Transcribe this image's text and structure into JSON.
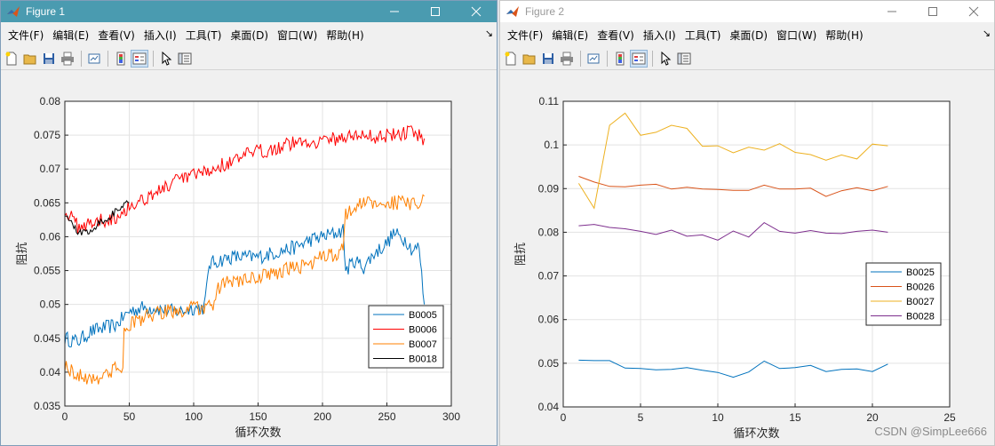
{
  "window1": {
    "title": "Figure 1",
    "menu": [
      "文件(F)",
      "编辑(E)",
      "查看(V)",
      "插入(I)",
      "工具(T)",
      "桌面(D)",
      "窗口(W)",
      "帮助(H)"
    ],
    "menu_arrow": "↘"
  },
  "window2": {
    "title": "Figure 2",
    "menu": [
      "文件(F)",
      "编辑(E)",
      "查看(V)",
      "插入(I)",
      "工具(T)",
      "桌面(D)",
      "窗口(W)",
      "帮助(H)"
    ],
    "menu_arrow": "↘"
  },
  "toolbar_icons": [
    "new-file-icon",
    "open-folder-icon",
    "save-icon",
    "print-icon",
    "link-plot-icon",
    "colorbar-icon",
    "legend-icon",
    "pointer-icon",
    "property-editor-icon"
  ],
  "watermark": "CSDN @SimpLee666",
  "chart_data": [
    {
      "type": "line",
      "xlabel": "循环次数",
      "ylabel": "阻抗",
      "xlim": [
        0,
        300
      ],
      "ylim": [
        0.035,
        0.08
      ],
      "xticks": [
        0,
        50,
        100,
        150,
        200,
        250,
        300
      ],
      "yticks": [
        0.035,
        0.04,
        0.045,
        0.05,
        0.055,
        0.06,
        0.065,
        0.07,
        0.075,
        0.08
      ],
      "grid": true,
      "legend": "lower-right",
      "noise": true,
      "series": [
        {
          "name": "B0005",
          "color": "#0072bd",
          "points": [
            [
              0,
              0.045
            ],
            [
              10,
              0.0445
            ],
            [
              20,
              0.046
            ],
            [
              30,
              0.0465
            ],
            [
              40,
              0.047
            ],
            [
              50,
              0.049
            ],
            [
              60,
              0.0495
            ],
            [
              70,
              0.0495
            ],
            [
              80,
              0.049
            ],
            [
              90,
              0.049
            ],
            [
              100,
              0.0495
            ],
            [
              108,
              0.0495
            ],
            [
              110,
              0.052
            ],
            [
              112,
              0.056
            ],
            [
              120,
              0.0565
            ],
            [
              130,
              0.057
            ],
            [
              140,
              0.057
            ],
            [
              150,
              0.057
            ],
            [
              160,
              0.0575
            ],
            [
              170,
              0.058
            ],
            [
              180,
              0.0585
            ],
            [
              190,
              0.0595
            ],
            [
              200,
              0.06
            ],
            [
              210,
              0.0605
            ],
            [
              216,
              0.061
            ],
            [
              218,
              0.055
            ],
            [
              225,
              0.0565
            ],
            [
              232,
              0.0555
            ],
            [
              240,
              0.0575
            ],
            [
              250,
              0.059
            ],
            [
              255,
              0.0605
            ],
            [
              260,
              0.06
            ],
            [
              265,
              0.0595
            ],
            [
              270,
              0.058
            ],
            [
              275,
              0.0585
            ],
            [
              279,
              0.05
            ]
          ]
        },
        {
          "name": "B0006",
          "color": "#ff0000",
          "points": [
            [
              0,
              0.064
            ],
            [
              10,
              0.0615
            ],
            [
              20,
              0.062
            ],
            [
              30,
              0.0625
            ],
            [
              40,
              0.063
            ],
            [
              50,
              0.0645
            ],
            [
              60,
              0.0655
            ],
            [
              70,
              0.0665
            ],
            [
              80,
              0.0675
            ],
            [
              90,
              0.0685
            ],
            [
              100,
              0.069
            ],
            [
              110,
              0.0695
            ],
            [
              120,
              0.0705
            ],
            [
              130,
              0.071
            ],
            [
              140,
              0.072
            ],
            [
              150,
              0.0725
            ],
            [
              160,
              0.073
            ],
            [
              170,
              0.0735
            ],
            [
              180,
              0.074
            ],
            [
              190,
              0.074
            ],
            [
              200,
              0.0742
            ],
            [
              210,
              0.0745
            ],
            [
              220,
              0.0748
            ],
            [
              230,
              0.075
            ],
            [
              240,
              0.0748
            ],
            [
              250,
              0.075
            ],
            [
              260,
              0.0752
            ],
            [
              270,
              0.0755
            ],
            [
              279,
              0.0745
            ]
          ]
        },
        {
          "name": "B0007",
          "color": "#ff8000",
          "points": [
            [
              0,
              0.041
            ],
            [
              10,
              0.0395
            ],
            [
              20,
              0.039
            ],
            [
              30,
              0.0395
            ],
            [
              40,
              0.0405
            ],
            [
              45,
              0.041
            ],
            [
              46,
              0.046
            ],
            [
              50,
              0.047
            ],
            [
              60,
              0.048
            ],
            [
              70,
              0.0485
            ],
            [
              80,
              0.049
            ],
            [
              90,
              0.049
            ],
            [
              100,
              0.0495
            ],
            [
              110,
              0.0495
            ],
            [
              115,
              0.0495
            ],
            [
              117,
              0.0515
            ],
            [
              120,
              0.0525
            ],
            [
              130,
              0.0535
            ],
            [
              140,
              0.0535
            ],
            [
              150,
              0.054
            ],
            [
              160,
              0.0545
            ],
            [
              170,
              0.055
            ],
            [
              180,
              0.0555
            ],
            [
              190,
              0.056
            ],
            [
              200,
              0.057
            ],
            [
              210,
              0.0575
            ],
            [
              216,
              0.058
            ],
            [
              218,
              0.0635
            ],
            [
              225,
              0.0645
            ],
            [
              235,
              0.065
            ],
            [
              245,
              0.065
            ],
            [
              255,
              0.065
            ],
            [
              265,
              0.065
            ],
            [
              275,
              0.0645
            ],
            [
              279,
              0.066
            ]
          ]
        },
        {
          "name": "B0018",
          "color": "#000000",
          "points": [
            [
              0,
              0.0635
            ],
            [
              5,
              0.062
            ],
            [
              10,
              0.0605
            ],
            [
              15,
              0.0608
            ],
            [
              20,
              0.061
            ],
            [
              25,
              0.0618
            ],
            [
              30,
              0.0625
            ],
            [
              35,
              0.063
            ],
            [
              40,
              0.0638
            ],
            [
              45,
              0.0645
            ],
            [
              50,
              0.065
            ]
          ]
        }
      ]
    },
    {
      "type": "line",
      "xlabel": "循环次数",
      "ylabel": "阻抗",
      "xlim": [
        0,
        25
      ],
      "ylim": [
        0.04,
        0.11
      ],
      "xticks": [
        0,
        5,
        10,
        15,
        20,
        25
      ],
      "yticks": [
        0.04,
        0.05,
        0.06,
        0.07,
        0.08,
        0.09,
        0.1,
        0.11
      ],
      "grid": true,
      "legend": "right",
      "x": [
        1,
        2,
        3,
        4,
        5,
        6,
        7,
        8,
        9,
        10,
        11,
        12,
        13,
        14,
        15,
        16,
        17,
        18,
        19,
        20,
        21
      ],
      "series": [
        {
          "name": "B0025",
          "color": "#0072bd",
          "values": [
            0.0507,
            0.0506,
            0.0506,
            0.0489,
            0.0488,
            0.0485,
            0.0486,
            0.049,
            0.0484,
            0.0479,
            0.0468,
            0.048,
            0.0505,
            0.0488,
            0.049,
            0.0495,
            0.0481,
            0.0486,
            0.0487,
            0.0481,
            0.0498
          ]
        },
        {
          "name": "B0026",
          "color": "#d95319",
          "values": [
            0.0928,
            0.0915,
            0.0905,
            0.0904,
            0.0908,
            0.091,
            0.0899,
            0.0903,
            0.0899,
            0.0898,
            0.0896,
            0.0896,
            0.0908,
            0.0899,
            0.0899,
            0.0901,
            0.0882,
            0.0895,
            0.0902,
            0.0895,
            0.0905
          ]
        },
        {
          "name": "B0027",
          "color": "#edb120",
          "values": [
            0.0912,
            0.0855,
            0.1045,
            0.1073,
            0.1022,
            0.1029,
            0.1045,
            0.1038,
            0.0997,
            0.0998,
            0.0982,
            0.0995,
            0.0988,
            0.1003,
            0.0983,
            0.0978,
            0.0965,
            0.0977,
            0.0968,
            0.1002,
            0.0998
          ]
        },
        {
          "name": "B0028",
          "color": "#7e2f8e",
          "values": [
            0.0815,
            0.0818,
            0.0811,
            0.0808,
            0.0802,
            0.0795,
            0.0805,
            0.0791,
            0.0794,
            0.0782,
            0.0803,
            0.0789,
            0.0822,
            0.0802,
            0.0798,
            0.0804,
            0.0798,
            0.0797,
            0.0802,
            0.0805,
            0.08
          ]
        }
      ]
    }
  ]
}
